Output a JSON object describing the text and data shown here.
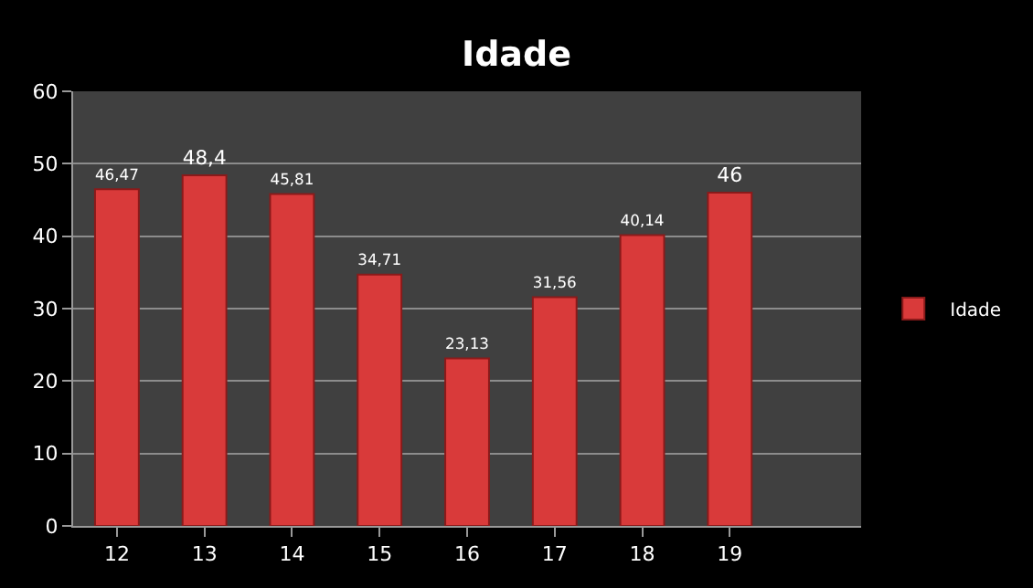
{
  "chart_data": {
    "type": "bar",
    "title": "Idade",
    "categories": [
      "12",
      "13",
      "14",
      "15",
      "16",
      "17",
      "18",
      "19",
      null
    ],
    "series": [
      {
        "name": "Idade",
        "color": "#d93a3a",
        "values": [
          46.47,
          48.4,
          45.81,
          34.71,
          23.13,
          31.56,
          40.14,
          46,
          null
        ],
        "value_labels": [
          "46,47",
          "48,4",
          "45,81",
          "34,71",
          "23,13",
          "31,56",
          "40,14",
          "46",
          null
        ]
      }
    ],
    "ylim": [
      0,
      60
    ],
    "yticks": [
      0,
      10,
      20,
      30,
      40,
      50,
      60
    ],
    "grid": "y",
    "legend": "right"
  }
}
